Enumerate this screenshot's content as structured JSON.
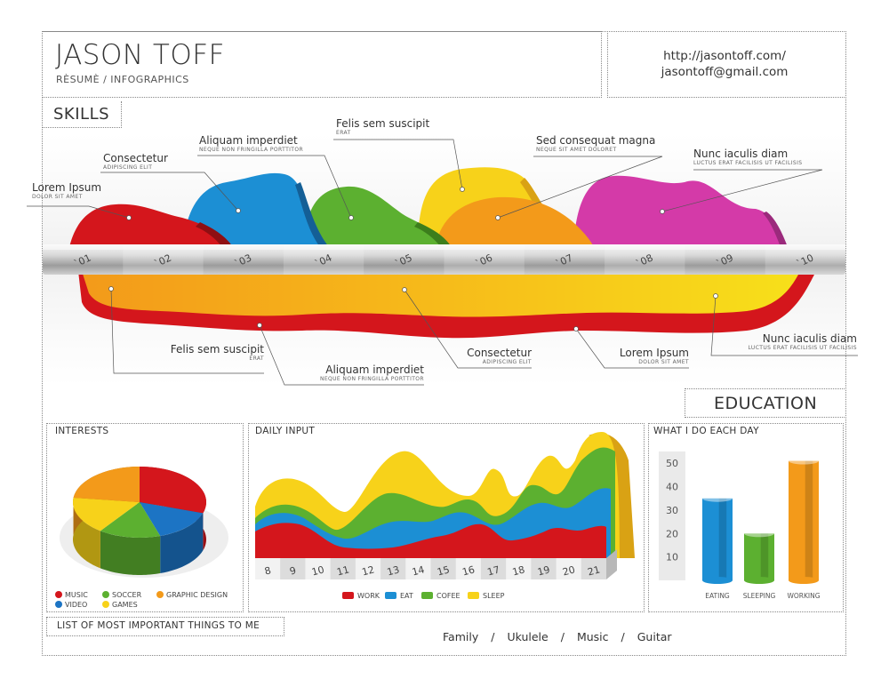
{
  "header": {
    "name": "JASON TOFF",
    "subtitle": "RÈSUMÈ / INFOGRAPHICS",
    "url": "http://jasontoff.com/",
    "email": "jasontoff@gmail.com"
  },
  "sections": {
    "skills": "SKILLS",
    "education": "EDUCATION",
    "interests": "INTERESTS",
    "daily_input": "DAILY INPUT",
    "what_i_do": "WHAT I DO EACH DAY",
    "list_title": "LIST OF MOST IMPORTANT THINGS TO ME"
  },
  "skills_callouts": [
    {
      "title": "Lorem Ipsum",
      "sub": "DOLOR SIT AMET"
    },
    {
      "title": "Consectetur",
      "sub": "ADIPISCING ELIT"
    },
    {
      "title": "Aliquam imperdiet",
      "sub": "NEQUE NON FRINGILLA PORTTITOR"
    },
    {
      "title": "Felis sem suscipit",
      "sub": "ERAT"
    },
    {
      "title": "Sed consequat magna",
      "sub": "NEQUE SIT AMET DOLORET"
    },
    {
      "title": "Nunc iaculis diam",
      "sub": "LUCTUS ERAT FACILISIS UT FACILISIS"
    }
  ],
  "education_callouts": [
    {
      "title": "Felis sem suscipit",
      "sub": "ERAT"
    },
    {
      "title": "Aliquam imperdiet",
      "sub": "NEQUE NON FRINGILLA PORTTITOR"
    },
    {
      "title": "Consectetur",
      "sub": "ADIPISCING ELIT"
    },
    {
      "title": "Lorem Ipsum",
      "sub": "DOLOR SIT AMET"
    },
    {
      "title": "Nunc iaculis diam",
      "sub": "LUCTUS ERAT FACILISIS UT FACILISIS"
    }
  ],
  "interests_legend": [
    {
      "label": "MUSIC",
      "color": "#d4161c"
    },
    {
      "label": "SOCCER",
      "color": "#5cb030"
    },
    {
      "label": "GRAPHIC DESIGN",
      "color": "#f39a1a"
    },
    {
      "label": "VIDEO",
      "color": "#1c74c4"
    },
    {
      "label": "GAMES",
      "color": "#f7d21a"
    }
  ],
  "daily_legend": [
    {
      "label": "WORK",
      "color": "#d4161c"
    },
    {
      "label": "EAT",
      "color": "#1c8fd4"
    },
    {
      "label": "COFEE",
      "color": "#5cb030"
    },
    {
      "label": "SLEEP",
      "color": "#f7d21a"
    }
  ],
  "important_things": [
    "Family",
    "Ukulele",
    "Music",
    "Guitar"
  ],
  "chart_data": [
    {
      "type": "area",
      "name": "skills",
      "categories": [
        "`01",
        "`02",
        "`03",
        "`04",
        "`05",
        "`06",
        "`07",
        "`08",
        "`09",
        "`10"
      ],
      "series_colors": [
        "#d4161c",
        "#1c8fd4",
        "#5cb030",
        "#f7d21a",
        "#f39a1a",
        "#d43aa8"
      ]
    },
    {
      "type": "area",
      "name": "education",
      "series_colors": [
        "#f39a1a",
        "#d4161c"
      ]
    },
    {
      "type": "pie",
      "name": "interests",
      "labels": [
        "MUSIC",
        "VIDEO",
        "SOCCER",
        "GAMES",
        "GRAPHIC DESIGN"
      ],
      "values": [
        30,
        15,
        15,
        17,
        23
      ],
      "colors": [
        "#d4161c",
        "#1c74c4",
        "#5cb030",
        "#f7d21a",
        "#f39a1a"
      ]
    },
    {
      "type": "area",
      "name": "daily_input",
      "categories": [
        "8",
        "9",
        "10",
        "11",
        "12",
        "13",
        "14",
        "15",
        "16",
        "17",
        "18",
        "19",
        "20",
        "21"
      ],
      "series": [
        {
          "name": "WORK",
          "color": "#d4161c"
        },
        {
          "name": "EAT",
          "color": "#1c8fd4"
        },
        {
          "name": "COFEE",
          "color": "#5cb030"
        },
        {
          "name": "SLEEP",
          "color": "#f7d21a"
        }
      ]
    },
    {
      "type": "bar",
      "name": "what_i_do_each_day",
      "categories": [
        "EATING",
        "SLEEPING",
        "WORKING"
      ],
      "values": [
        35,
        20,
        51
      ],
      "colors": [
        "#1c8fd4",
        "#5cb030",
        "#f39a1a"
      ],
      "yticks": [
        "10",
        "20",
        "30",
        "40",
        "50"
      ],
      "ylim": [
        0,
        55
      ]
    }
  ]
}
